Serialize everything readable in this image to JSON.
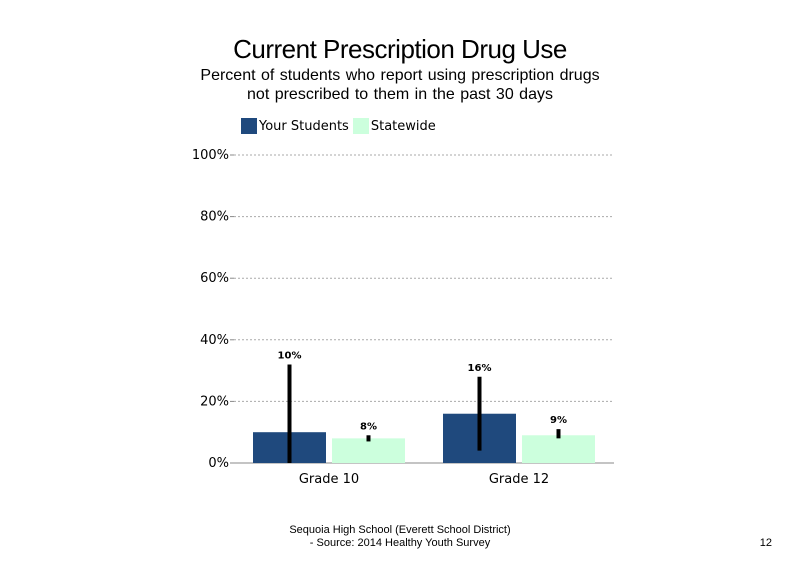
{
  "header": {
    "title": "Current Prescription Drug Use",
    "subtitle": "Percent of students  who report using prescription drugs not prescribed to them in the past 30 days"
  },
  "legend": [
    {
      "label": "Your Students",
      "color": "#1f497d"
    },
    {
      "label": "Statewide",
      "color": "#ccffdd"
    }
  ],
  "footer": {
    "line1": "Sequoia High School (Everett School District)",
    "line2": "- Source: 2014 Healthy  Youth Survey",
    "page_number": "12"
  },
  "chart_data": {
    "type": "bar",
    "title": "Current Prescription Drug Use",
    "categories": [
      "Grade 10",
      "Grade 12"
    ],
    "series": [
      {
        "name": "Your Students",
        "color": "#1f497d",
        "values": [
          10,
          16
        ],
        "labels": [
          "10%",
          "16%"
        ],
        "error_bars": [
          [
            0,
            32
          ],
          [
            4,
            28
          ]
        ]
      },
      {
        "name": "Statewide",
        "color": "#ccffdd",
        "values": [
          8,
          9
        ],
        "labels": [
          "8%",
          "9%"
        ],
        "error_bars": [
          [
            7,
            9
          ],
          [
            8,
            11
          ]
        ]
      }
    ],
    "ylim": [
      0,
      100
    ],
    "yticks": [
      0,
      20,
      40,
      60,
      80,
      100
    ],
    "ytick_labels": [
      "0%",
      "20%",
      "40%",
      "60%",
      "80%",
      "100%"
    ],
    "grid": true,
    "legend_position": "top-left"
  }
}
